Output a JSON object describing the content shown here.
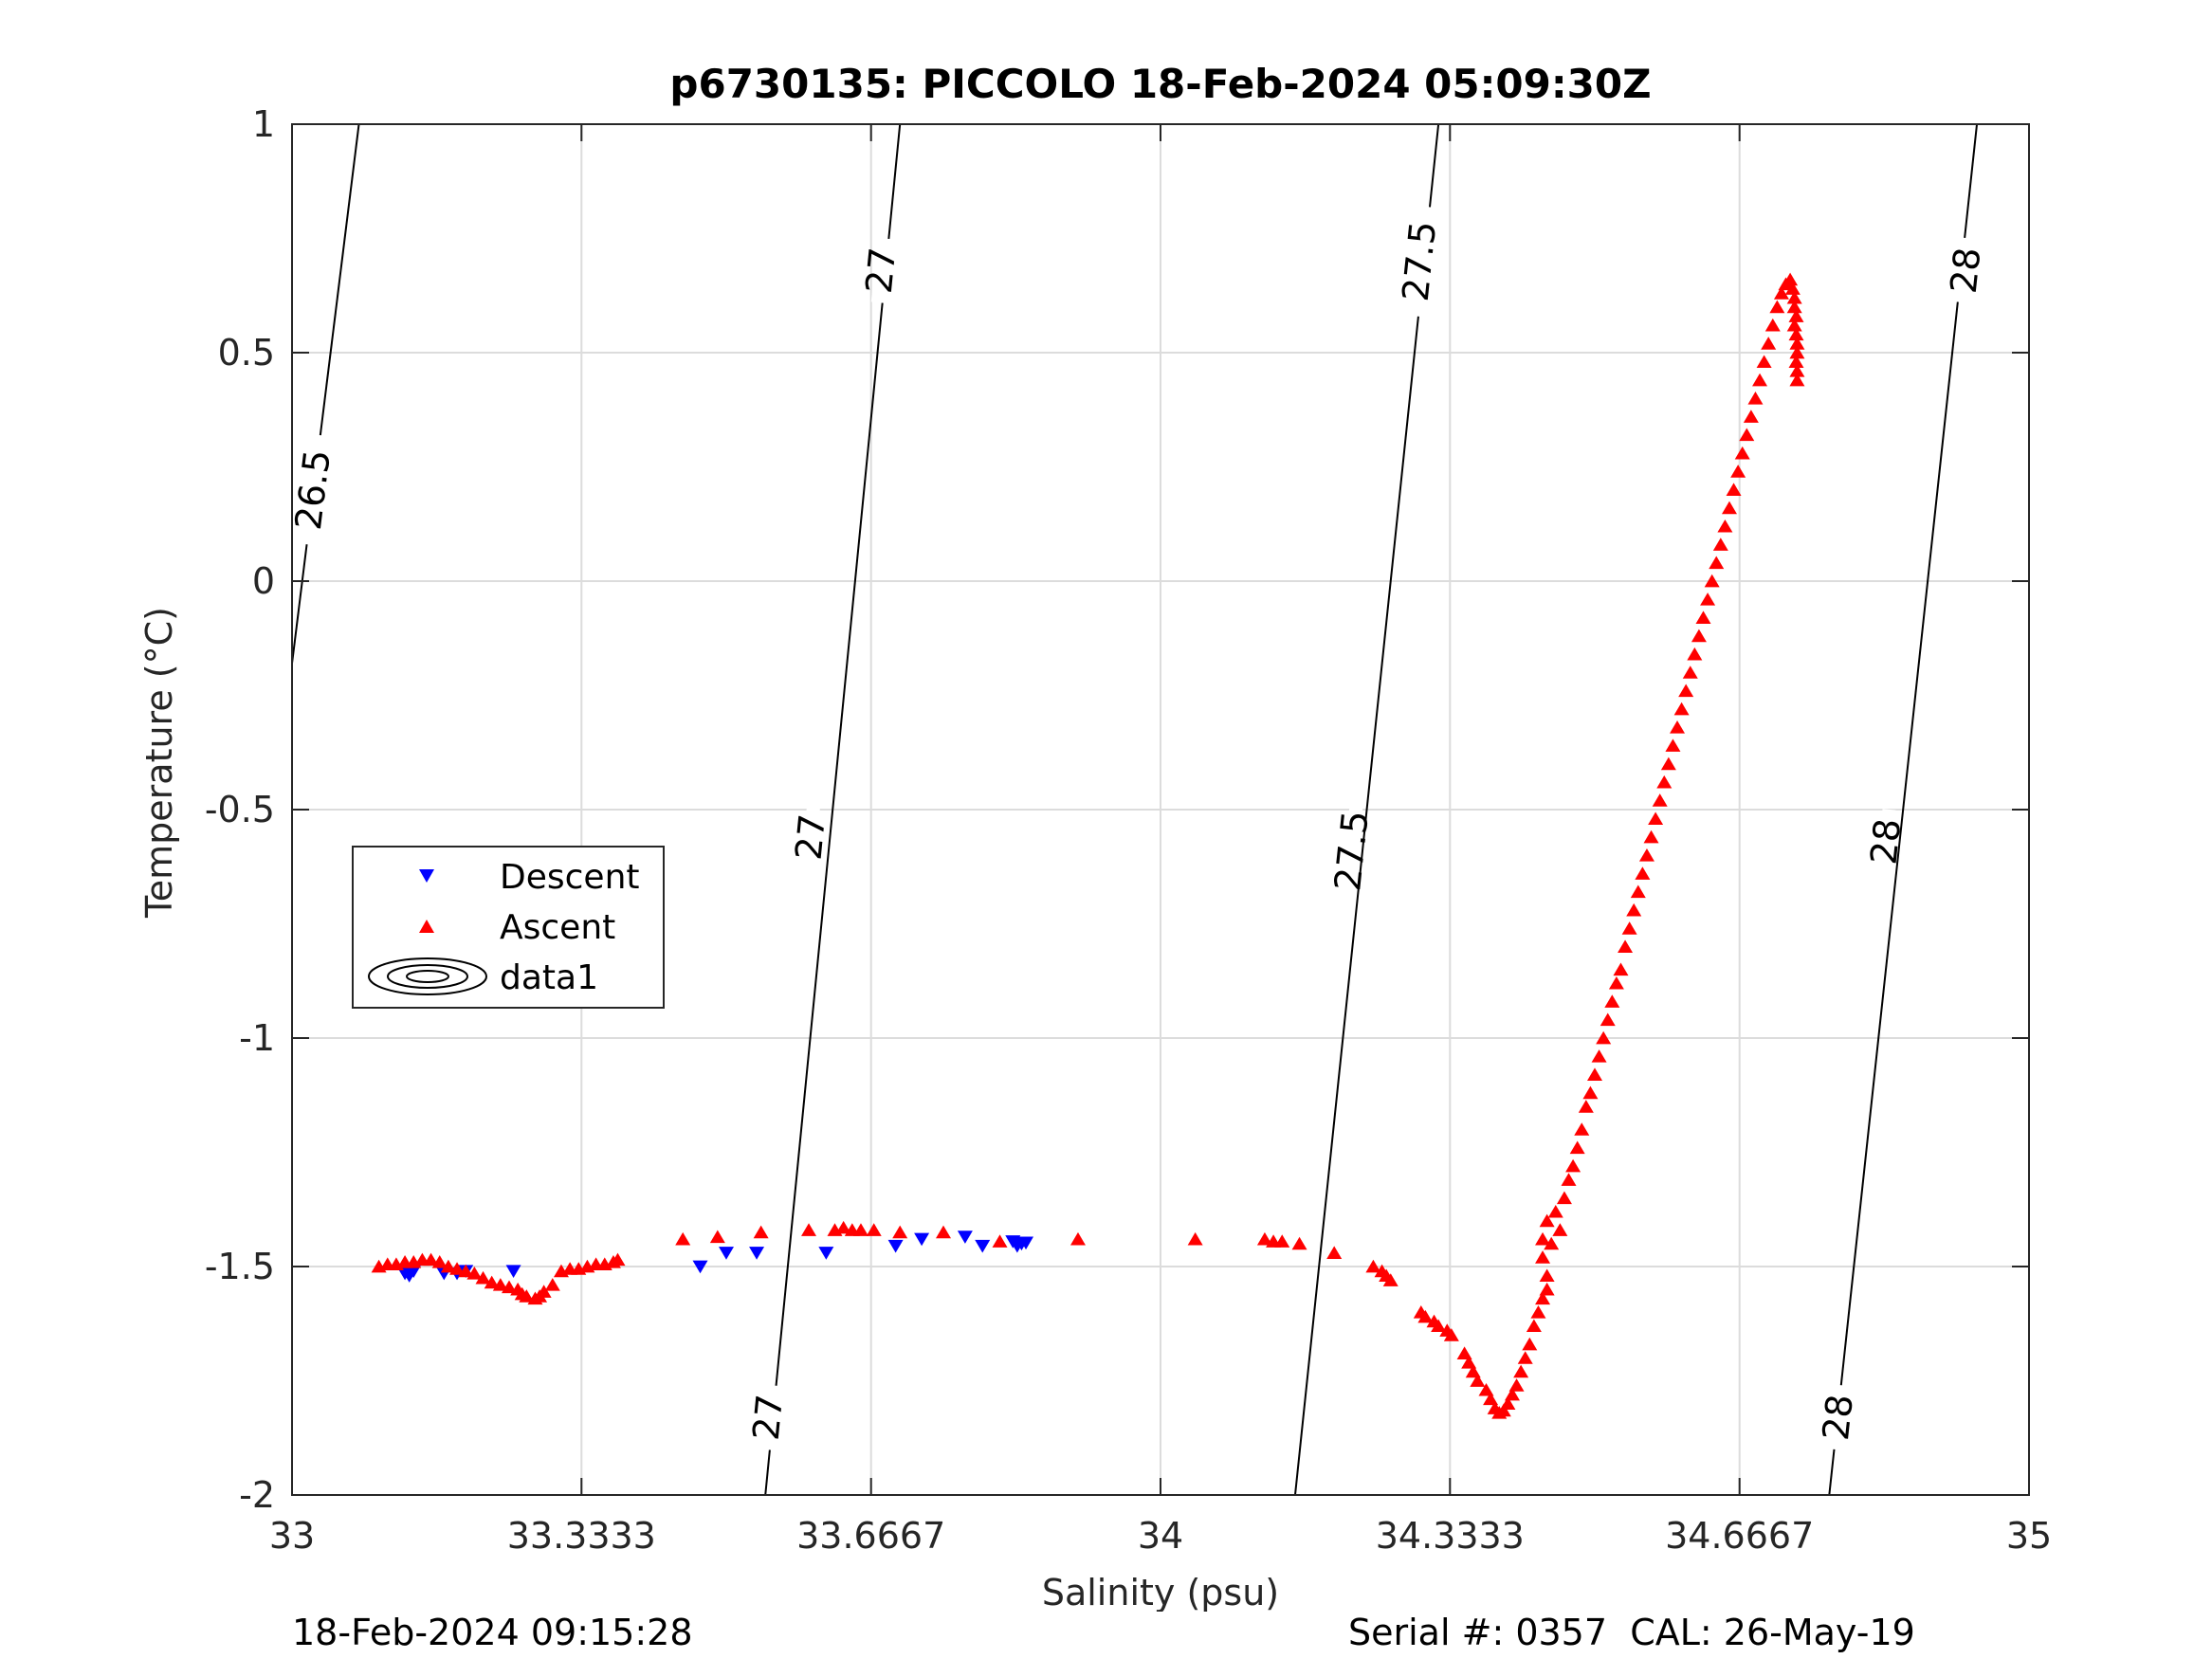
{
  "chart_data": {
    "type": "scatter",
    "title": "p6730135: PICCOLO 18-Feb-2024 05:09:30Z",
    "xlabel": "Salinity (psu)",
    "ylabel": "Temperature (°C)",
    "xlim": [
      33,
      35
    ],
    "ylim": [
      -2,
      1
    ],
    "xticks": [
      33,
      33.3333,
      33.6667,
      34,
      34.3333,
      34.6667,
      35
    ],
    "xtick_labels": [
      "33",
      "33.3333",
      "33.6667",
      "34",
      "34.3333",
      "34.6667",
      "35"
    ],
    "yticks": [
      -2,
      -1.5,
      -1,
      -0.5,
      0,
      0.5,
      1
    ],
    "ytick_labels": [
      "-2",
      "-1.5",
      "-1",
      "-0.5",
      "0",
      "0.5",
      "1"
    ],
    "grid": true,
    "legend": {
      "placement": "left-middle",
      "entries": [
        "Descent",
        "Ascent",
        "data1"
      ]
    },
    "contours": [
      {
        "label": "26.5",
        "points": [
          [
            33.0,
            -0.18
          ],
          [
            33.077,
            1.0
          ]
        ],
        "labels_at": [
          {
            "x": 33.024,
            "y": 0.2,
            "text": "26.5"
          }
        ]
      },
      {
        "label": "27",
        "points": [
          [
            33.545,
            -2.0
          ],
          [
            33.7,
            1.0
          ]
        ],
        "labels_at": [
          {
            "x": 33.548,
            "y": -1.83,
            "text": "27"
          },
          {
            "x": 33.597,
            "y": -0.56,
            "text": "27"
          },
          {
            "x": 33.678,
            "y": 0.68,
            "text": "27"
          }
        ]
      },
      {
        "label": "27.5",
        "points": [
          [
            34.155,
            -2.0
          ],
          [
            34.32,
            1.0
          ]
        ],
        "labels_at": [
          {
            "x": 34.22,
            "y": -0.59,
            "text": "27.5"
          },
          {
            "x": 34.298,
            "y": 0.7,
            "text": "27.5"
          }
        ]
      },
      {
        "label": "28",
        "points": [
          [
            34.77,
            -2.0
          ],
          [
            34.94,
            1.0
          ]
        ],
        "labels_at": [
          {
            "x": 34.78,
            "y": -1.83,
            "text": "28"
          },
          {
            "x": 34.835,
            "y": -0.57,
            "text": "28"
          },
          {
            "x": 34.927,
            "y": 0.68,
            "text": "28"
          }
        ]
      }
    ],
    "series": [
      {
        "name": "Descent",
        "marker": "triangle-down",
        "color": "#0000ff",
        "points": [
          [
            33.13,
            -1.515
          ],
          [
            33.135,
            -1.52
          ],
          [
            33.14,
            -1.51
          ],
          [
            33.175,
            -1.515
          ],
          [
            33.19,
            -1.515
          ],
          [
            33.2,
            -1.51
          ],
          [
            33.255,
            -1.51
          ],
          [
            33.47,
            -1.5
          ],
          [
            33.5,
            -1.47
          ],
          [
            33.535,
            -1.47
          ],
          [
            33.615,
            -1.47
          ],
          [
            33.695,
            -1.455
          ],
          [
            33.725,
            -1.44
          ],
          [
            33.775,
            -1.435
          ],
          [
            33.795,
            -1.455
          ],
          [
            33.83,
            -1.445
          ],
          [
            33.835,
            -1.455
          ],
          [
            33.84,
            -1.45
          ],
          [
            33.845,
            -1.448
          ]
        ]
      },
      {
        "name": "Ascent",
        "marker": "triangle-up",
        "color": "#ff0000",
        "points": [
          [
            33.1,
            -1.5
          ],
          [
            33.11,
            -1.495
          ],
          [
            33.12,
            -1.495
          ],
          [
            33.13,
            -1.49
          ],
          [
            33.14,
            -1.49
          ],
          [
            33.15,
            -1.485
          ],
          [
            33.16,
            -1.485
          ],
          [
            33.17,
            -1.49
          ],
          [
            33.18,
            -1.5
          ],
          [
            33.19,
            -1.505
          ],
          [
            33.2,
            -1.51
          ],
          [
            33.21,
            -1.515
          ],
          [
            33.22,
            -1.525
          ],
          [
            33.23,
            -1.535
          ],
          [
            33.24,
            -1.54
          ],
          [
            33.25,
            -1.545
          ],
          [
            33.26,
            -1.55
          ],
          [
            33.265,
            -1.56
          ],
          [
            33.27,
            -1.565
          ],
          [
            33.28,
            -1.57
          ],
          [
            33.285,
            -1.565
          ],
          [
            33.29,
            -1.555
          ],
          [
            33.3,
            -1.54
          ],
          [
            33.31,
            -1.51
          ],
          [
            33.32,
            -1.505
          ],
          [
            33.33,
            -1.505
          ],
          [
            33.34,
            -1.5
          ],
          [
            33.35,
            -1.495
          ],
          [
            33.36,
            -1.495
          ],
          [
            33.37,
            -1.49
          ],
          [
            33.375,
            -1.485
          ],
          [
            33.45,
            -1.44
          ],
          [
            33.49,
            -1.435
          ],
          [
            33.54,
            -1.425
          ],
          [
            33.595,
            -1.42
          ],
          [
            33.625,
            -1.42
          ],
          [
            33.635,
            -1.415
          ],
          [
            33.645,
            -1.42
          ],
          [
            33.655,
            -1.42
          ],
          [
            33.67,
            -1.42
          ],
          [
            33.7,
            -1.425
          ],
          [
            33.75,
            -1.425
          ],
          [
            33.815,
            -1.445
          ],
          [
            33.905,
            -1.44
          ],
          [
            34.04,
            -1.44
          ],
          [
            34.12,
            -1.44
          ],
          [
            34.13,
            -1.445
          ],
          [
            34.14,
            -1.445
          ],
          [
            34.16,
            -1.45
          ],
          [
            34.2,
            -1.47
          ],
          [
            34.245,
            -1.5
          ],
          [
            34.255,
            -1.51
          ],
          [
            34.26,
            -1.52
          ],
          [
            34.265,
            -1.53
          ],
          [
            34.3,
            -1.6
          ],
          [
            34.305,
            -1.61
          ],
          [
            34.315,
            -1.62
          ],
          [
            34.32,
            -1.63
          ],
          [
            34.33,
            -1.64
          ],
          [
            34.335,
            -1.65
          ],
          [
            34.35,
            -1.69
          ],
          [
            34.355,
            -1.71
          ],
          [
            34.36,
            -1.73
          ],
          [
            34.365,
            -1.75
          ],
          [
            34.375,
            -1.77
          ],
          [
            34.38,
            -1.79
          ],
          [
            34.385,
            -1.81
          ],
          [
            34.39,
            -1.82
          ],
          [
            34.395,
            -1.815
          ],
          [
            34.4,
            -1.8
          ],
          [
            34.405,
            -1.78
          ],
          [
            34.41,
            -1.76
          ],
          [
            34.415,
            -1.73
          ],
          [
            34.42,
            -1.7
          ],
          [
            34.425,
            -1.67
          ],
          [
            34.43,
            -1.63
          ],
          [
            34.435,
            -1.6
          ],
          [
            34.44,
            -1.57
          ],
          [
            34.445,
            -1.55
          ],
          [
            34.445,
            -1.52
          ],
          [
            34.44,
            -1.48
          ],
          [
            34.44,
            -1.44
          ],
          [
            34.445,
            -1.4
          ],
          [
            34.45,
            -1.45
          ],
          [
            34.455,
            -1.38
          ],
          [
            34.46,
            -1.42
          ],
          [
            34.465,
            -1.35
          ],
          [
            34.47,
            -1.31
          ],
          [
            34.475,
            -1.28
          ],
          [
            34.48,
            -1.24
          ],
          [
            34.485,
            -1.2
          ],
          [
            34.49,
            -1.15
          ],
          [
            34.495,
            -1.12
          ],
          [
            34.5,
            -1.08
          ],
          [
            34.505,
            -1.04
          ],
          [
            34.51,
            -1.0
          ],
          [
            34.515,
            -0.96
          ],
          [
            34.52,
            -0.92
          ],
          [
            34.525,
            -0.88
          ],
          [
            34.53,
            -0.85
          ],
          [
            34.535,
            -0.8
          ],
          [
            34.54,
            -0.76
          ],
          [
            34.545,
            -0.72
          ],
          [
            34.55,
            -0.68
          ],
          [
            34.555,
            -0.64
          ],
          [
            34.56,
            -0.6
          ],
          [
            34.565,
            -0.56
          ],
          [
            34.57,
            -0.52
          ],
          [
            34.575,
            -0.48
          ],
          [
            34.58,
            -0.44
          ],
          [
            34.585,
            -0.4
          ],
          [
            34.59,
            -0.36
          ],
          [
            34.595,
            -0.32
          ],
          [
            34.6,
            -0.28
          ],
          [
            34.605,
            -0.24
          ],
          [
            34.61,
            -0.2
          ],
          [
            34.615,
            -0.16
          ],
          [
            34.62,
            -0.12
          ],
          [
            34.625,
            -0.08
          ],
          [
            34.63,
            -0.04
          ],
          [
            34.635,
            0.0
          ],
          [
            34.64,
            0.04
          ],
          [
            34.645,
            0.08
          ],
          [
            34.65,
            0.12
          ],
          [
            34.655,
            0.16
          ],
          [
            34.66,
            0.2
          ],
          [
            34.665,
            0.24
          ],
          [
            34.67,
            0.28
          ],
          [
            34.675,
            0.32
          ],
          [
            34.68,
            0.36
          ],
          [
            34.685,
            0.4
          ],
          [
            34.69,
            0.44
          ],
          [
            34.695,
            0.48
          ],
          [
            34.7,
            0.52
          ],
          [
            34.705,
            0.56
          ],
          [
            34.71,
            0.6
          ],
          [
            34.715,
            0.63
          ],
          [
            34.72,
            0.65
          ],
          [
            34.725,
            0.66
          ],
          [
            34.728,
            0.64
          ],
          [
            34.73,
            0.62
          ],
          [
            34.73,
            0.6
          ],
          [
            34.732,
            0.58
          ],
          [
            34.73,
            0.56
          ],
          [
            34.732,
            0.54
          ],
          [
            34.733,
            0.52
          ],
          [
            34.733,
            0.5
          ],
          [
            34.732,
            0.48
          ],
          [
            34.733,
            0.46
          ],
          [
            34.733,
            0.44
          ]
        ]
      }
    ]
  },
  "footer": {
    "timestamp": "18-Feb-2024 09:15:28",
    "serial_cal": "Serial #: 0357  CAL: 26-May-19"
  }
}
